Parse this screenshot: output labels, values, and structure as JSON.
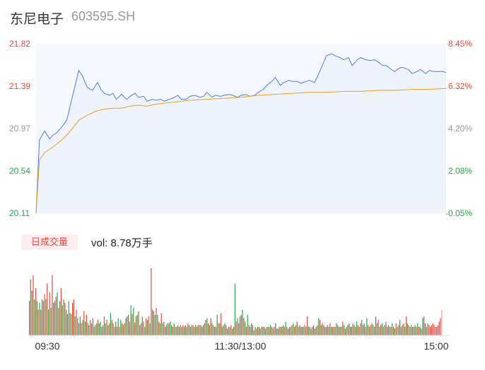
{
  "header": {
    "name": "东尼电子",
    "code": "603595.SH"
  },
  "volume_panel": {
    "tab_label": "日成交量",
    "vol_text": "vol: 8.78万手"
  },
  "colors": {
    "price": "#4a7fe0",
    "avg": "#f0a020",
    "up": "#e8483e",
    "down": "#22a845",
    "neutral": "#999999",
    "area": "#f5f8fd"
  },
  "chart_data": [
    {
      "type": "line",
      "x_ticks": [
        "09:30",
        "11:30/13:00",
        "15:00"
      ],
      "y_left_ticks": [
        "21.82",
        "21.39",
        "20.97",
        "20.54",
        "20.11"
      ],
      "y_right_ticks": [
        "8.45%",
        "6.32%",
        "4.20%",
        "2.08%",
        "-0.05%"
      ],
      "ylim": [
        20.11,
        21.82
      ],
      "series": [
        {
          "x": [
            0,
            2,
            5,
            8,
            10,
            12,
            15,
            18,
            22,
            25,
            27,
            30,
            33,
            36,
            38,
            40,
            43,
            45,
            47,
            50,
            53,
            55,
            58,
            60,
            63,
            65,
            68,
            70,
            73,
            75,
            78,
            80,
            83,
            85,
            88,
            90,
            93,
            96,
            98,
            100,
            103,
            105,
            108,
            110,
            113,
            115,
            118,
            120,
            123,
            125,
            128,
            130,
            133,
            135,
            138,
            140,
            143,
            145,
            148,
            150,
            153,
            155,
            158,
            160,
            163,
            165,
            168,
            170,
            173,
            175,
            178,
            180,
            183,
            185,
            188,
            190,
            193,
            196,
            198,
            200,
            203,
            205,
            208,
            210,
            213,
            215,
            218,
            220,
            223,
            225,
            228,
            230,
            233,
            236,
            238,
            240
          ],
          "values": [
            20.11,
            20.85,
            20.94,
            20.86,
            20.9,
            20.92,
            20.98,
            21.05,
            21.34,
            21.55,
            21.5,
            21.38,
            21.35,
            21.43,
            21.36,
            21.32,
            21.3,
            21.32,
            21.26,
            21.31,
            21.26,
            21.29,
            21.32,
            21.28,
            21.29,
            21.24,
            21.26,
            21.25,
            21.26,
            21.24,
            21.26,
            21.27,
            21.3,
            21.26,
            21.26,
            21.29,
            21.3,
            21.28,
            21.29,
            21.33,
            21.28,
            21.3,
            21.29,
            21.3,
            21.31,
            21.3,
            21.28,
            21.3,
            21.31,
            21.29,
            21.3,
            21.33,
            21.36,
            21.4,
            21.44,
            21.48,
            21.4,
            21.43,
            21.45,
            21.44,
            21.44,
            21.42,
            21.44,
            21.45,
            21.43,
            21.5,
            21.62,
            21.7,
            21.72,
            21.7,
            21.68,
            21.66,
            21.68,
            21.6,
            21.66,
            21.68,
            21.66,
            21.65,
            21.66,
            21.64,
            21.6,
            21.6,
            21.56,
            21.54,
            21.58,
            21.58,
            21.56,
            21.52,
            21.54,
            21.56,
            21.52,
            21.55,
            21.54,
            21.54,
            21.54,
            21.53
          ]
        },
        {
          "x": [
            0,
            2,
            5,
            10,
            15,
            18,
            22,
            25,
            30,
            35,
            40,
            45,
            50,
            55,
            60,
            65,
            70,
            80,
            90,
            100,
            110,
            120,
            130,
            140,
            150,
            160,
            170,
            180,
            190,
            200,
            210,
            220,
            230,
            240
          ],
          "values": [
            20.11,
            20.65,
            20.72,
            20.78,
            20.85,
            20.9,
            20.98,
            21.05,
            21.1,
            21.14,
            21.16,
            21.17,
            21.17,
            21.19,
            21.2,
            21.19,
            21.21,
            21.23,
            21.25,
            21.26,
            21.27,
            21.28,
            21.3,
            21.31,
            21.32,
            21.33,
            21.33,
            21.34,
            21.34,
            21.35,
            21.35,
            21.36,
            21.36,
            21.37
          ]
        }
      ]
    },
    {
      "type": "bar",
      "values": [
        40,
        65,
        52,
        70,
        42,
        55,
        40,
        30,
        38,
        30,
        42,
        40,
        48,
        42,
        60,
        30,
        50,
        32,
        70,
        38,
        40,
        45,
        50,
        32,
        40,
        55,
        35,
        42,
        38,
        30,
        25,
        40,
        26,
        25,
        38,
        42,
        22,
        30,
        20,
        14,
        22,
        14,
        18,
        28,
        16,
        24,
        14,
        12,
        18,
        14,
        20,
        10,
        12,
        14,
        18,
        14,
        16,
        10,
        12,
        22,
        14,
        18,
        12,
        14,
        26,
        18,
        14,
        10,
        16,
        10,
        20,
        10,
        18,
        14,
        12,
        14,
        20,
        22,
        24,
        16,
        35,
        25,
        32,
        15,
        22,
        24,
        28,
        12,
        14,
        22,
        16,
        10,
        20,
        18,
        22,
        14,
        78,
        30,
        28,
        24,
        32,
        24,
        16,
        14,
        26,
        14,
        16,
        10,
        12,
        14,
        14,
        16,
        12,
        10,
        14,
        10,
        10,
        12,
        10,
        12,
        10,
        12,
        10,
        12,
        10,
        14,
        12,
        10,
        12,
        12,
        10,
        12,
        10,
        12,
        12,
        12,
        10,
        12,
        14,
        18,
        20,
        14,
        12,
        20,
        14,
        12,
        10,
        10,
        24,
        14,
        14,
        26,
        10,
        12,
        14,
        12,
        8,
        10,
        10,
        12,
        8,
        10,
        60,
        16,
        20,
        14,
        22,
        24,
        30,
        20,
        16,
        10,
        24,
        12,
        10,
        14,
        12,
        6,
        10,
        8,
        10,
        10,
        8,
        10,
        10,
        10,
        8,
        10,
        10,
        10,
        12,
        10,
        8,
        10,
        14,
        8,
        8,
        10,
        10,
        10,
        12,
        10,
        16,
        10,
        8,
        10,
        10,
        12,
        14,
        10,
        12,
        16,
        10,
        12,
        10,
        10,
        10,
        12,
        10,
        22,
        10,
        10,
        8,
        10,
        12,
        8,
        10,
        12,
        20,
        18,
        12,
        14,
        12,
        10,
        10,
        12,
        10,
        14,
        10,
        10,
        10,
        10,
        14,
        12,
        10,
        10,
        10,
        16,
        12,
        8,
        10,
        12,
        14,
        10,
        10,
        14,
        12,
        10,
        16,
        12,
        10,
        14,
        18,
        12,
        14,
        10,
        20,
        12,
        10,
        12,
        14,
        12,
        10,
        22,
        14,
        18,
        10,
        12,
        14,
        10,
        12,
        16,
        10,
        12,
        10,
        10,
        14,
        10,
        8,
        14,
        10,
        12,
        18,
        10,
        12,
        14,
        10,
        22,
        14,
        12,
        10,
        12,
        10,
        10,
        12,
        10,
        14,
        10,
        10,
        8,
        20,
        22,
        14,
        10,
        14,
        12,
        10,
        12,
        14,
        12,
        10,
        10,
        12,
        16,
        20,
        30
      ],
      "directions": [
        "up",
        "up",
        "down",
        "up",
        "down",
        "up",
        "down",
        "up",
        "down",
        "up",
        "down",
        "up",
        "up",
        "down",
        "up",
        "down",
        "up",
        "down",
        "up",
        "down",
        "up",
        "up",
        "down",
        "up",
        "down",
        "up",
        "down",
        "up",
        "down",
        "up",
        "down",
        "down",
        "up",
        "down",
        "up",
        "up",
        "down",
        "up",
        "down",
        "up",
        "down",
        "up",
        "down",
        "up",
        "down",
        "up",
        "down",
        "up",
        "up",
        "down",
        "up",
        "down",
        "up",
        "down",
        "up",
        "down",
        "down",
        "up",
        "down",
        "up",
        "down",
        "up",
        "down",
        "up",
        "down",
        "up",
        "down",
        "up",
        "down",
        "up",
        "down",
        "up",
        "down",
        "up",
        "down",
        "up",
        "down",
        "up",
        "down",
        "up",
        "down",
        "up",
        "down",
        "up",
        "down",
        "up",
        "down",
        "up",
        "up",
        "down",
        "up",
        "down",
        "up",
        "down",
        "up",
        "down",
        "up",
        "down",
        "up",
        "down",
        "up",
        "down",
        "up",
        "down",
        "up",
        "down",
        "up",
        "down",
        "up",
        "down",
        "up",
        "down",
        "down",
        "up",
        "down",
        "up",
        "down",
        "up",
        "down",
        "up",
        "down",
        "up",
        "down",
        "up",
        "down",
        "up",
        "down",
        "up",
        "down",
        "up",
        "down",
        "up",
        "down",
        "up",
        "down",
        "up",
        "down",
        "up",
        "down",
        "up",
        "down",
        "up",
        "down",
        "up",
        "down",
        "up",
        "down",
        "up",
        "down",
        "up",
        "down",
        "up",
        "down",
        "up",
        "down",
        "up",
        "down",
        "up",
        "down",
        "up",
        "down",
        "up",
        "down",
        "up",
        "down",
        "up",
        "down",
        "up",
        "down",
        "up",
        "down",
        "up",
        "down",
        "up",
        "down",
        "up",
        "down",
        "up",
        "down",
        "up",
        "down",
        "up",
        "down",
        "up",
        "down",
        "up",
        "down",
        "up",
        "down",
        "up",
        "down",
        "up",
        "down",
        "up",
        "down",
        "up",
        "down",
        "up",
        "down",
        "up",
        "down",
        "up",
        "down",
        "up",
        "down",
        "up",
        "down",
        "up",
        "down",
        "up",
        "down",
        "up",
        "down",
        "up",
        "down",
        "up",
        "down",
        "up",
        "down",
        "up",
        "down",
        "up",
        "down",
        "up",
        "down",
        "up",
        "down",
        "up",
        "down",
        "up",
        "down",
        "up",
        "down",
        "up",
        "down",
        "up",
        "down",
        "up",
        "down",
        "up",
        "down",
        "up",
        "down",
        "up",
        "down",
        "up",
        "down",
        "up",
        "down",
        "up",
        "down",
        "up",
        "down",
        "up",
        "down",
        "up",
        "down",
        "up",
        "down",
        "up",
        "down",
        "up",
        "down",
        "up",
        "down",
        "up",
        "down",
        "up",
        "down",
        "up",
        "down",
        "up",
        "down",
        "up",
        "down",
        "up",
        "down",
        "up",
        "down",
        "up",
        "down",
        "up",
        "down",
        "up",
        "down",
        "up",
        "down",
        "up",
        "down",
        "up",
        "down",
        "up",
        "down",
        "up",
        "down",
        "up",
        "down",
        "up",
        "down",
        "up",
        "down",
        "up",
        "down",
        "up",
        "down",
        "up",
        "down",
        "up",
        "down",
        "up",
        "down",
        "up",
        "down",
        "up",
        "down",
        "up",
        "up"
      ]
    }
  ]
}
